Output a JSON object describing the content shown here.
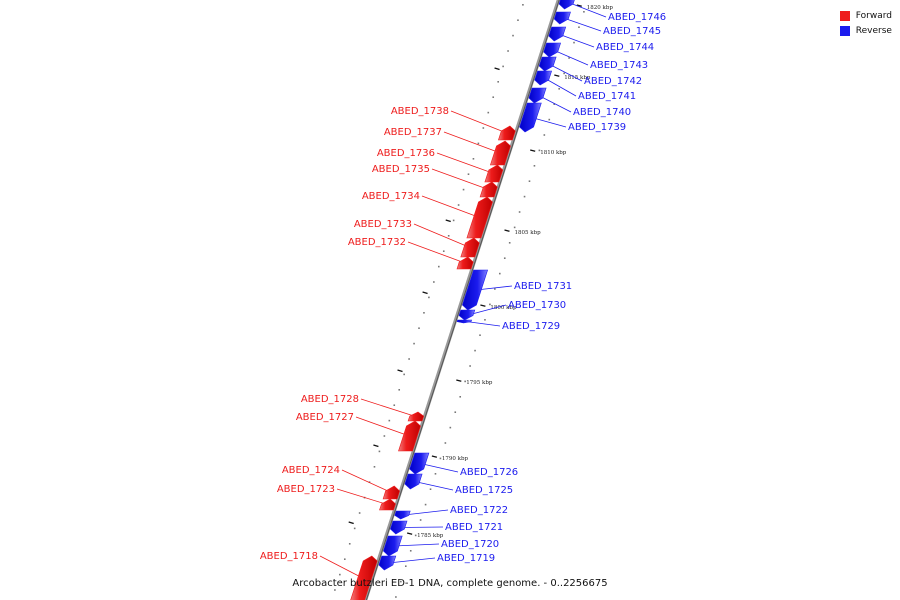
{
  "legend": {
    "forward_label": "Forward",
    "forward_color": "#ee1c1c",
    "reverse_label": "Reverse",
    "reverse_color": "#1c1cee"
  },
  "caption": "Arcobacter butzleri ED-1 DNA, complete genome. - 0..2256675",
  "ticks": [
    "1820 kbp",
    "1815 kbp",
    "1810 kbp",
    "1805 kbp",
    "1800 kbp",
    "1795 kbp",
    "1790 kbp",
    "1785 kbp"
  ],
  "genes": [
    {
      "label": "ABED_1746",
      "strand": "reverse"
    },
    {
      "label": "ABED_1745",
      "strand": "reverse"
    },
    {
      "label": "ABED_1744",
      "strand": "reverse"
    },
    {
      "label": "ABED_1743",
      "strand": "reverse"
    },
    {
      "label": "ABED_1742",
      "strand": "reverse"
    },
    {
      "label": "ABED_1741",
      "strand": "reverse"
    },
    {
      "label": "ABED_1740",
      "strand": "reverse"
    },
    {
      "label": "ABED_1739",
      "strand": "reverse"
    },
    {
      "label": "ABED_1738",
      "strand": "forward"
    },
    {
      "label": "ABED_1737",
      "strand": "forward"
    },
    {
      "label": "ABED_1736",
      "strand": "forward"
    },
    {
      "label": "ABED_1735",
      "strand": "forward"
    },
    {
      "label": "ABED_1734",
      "strand": "forward"
    },
    {
      "label": "ABED_1733",
      "strand": "forward"
    },
    {
      "label": "ABED_1732",
      "strand": "forward"
    },
    {
      "label": "ABED_1731",
      "strand": "reverse"
    },
    {
      "label": "ABED_1730",
      "strand": "reverse"
    },
    {
      "label": "ABED_1729",
      "strand": "reverse"
    },
    {
      "label": "ABED_1728",
      "strand": "forward"
    },
    {
      "label": "ABED_1727",
      "strand": "forward"
    },
    {
      "label": "ABED_1726",
      "strand": "reverse"
    },
    {
      "label": "ABED_1725",
      "strand": "reverse"
    },
    {
      "label": "ABED_1724",
      "strand": "forward"
    },
    {
      "label": "ABED_1723",
      "strand": "forward"
    },
    {
      "label": "ABED_1722",
      "strand": "reverse"
    },
    {
      "label": "ABED_1721",
      "strand": "reverse"
    },
    {
      "label": "ABED_1720",
      "strand": "reverse"
    },
    {
      "label": "ABED_1719",
      "strand": "reverse"
    },
    {
      "label": "ABED_1718",
      "strand": "forward"
    }
  ]
}
